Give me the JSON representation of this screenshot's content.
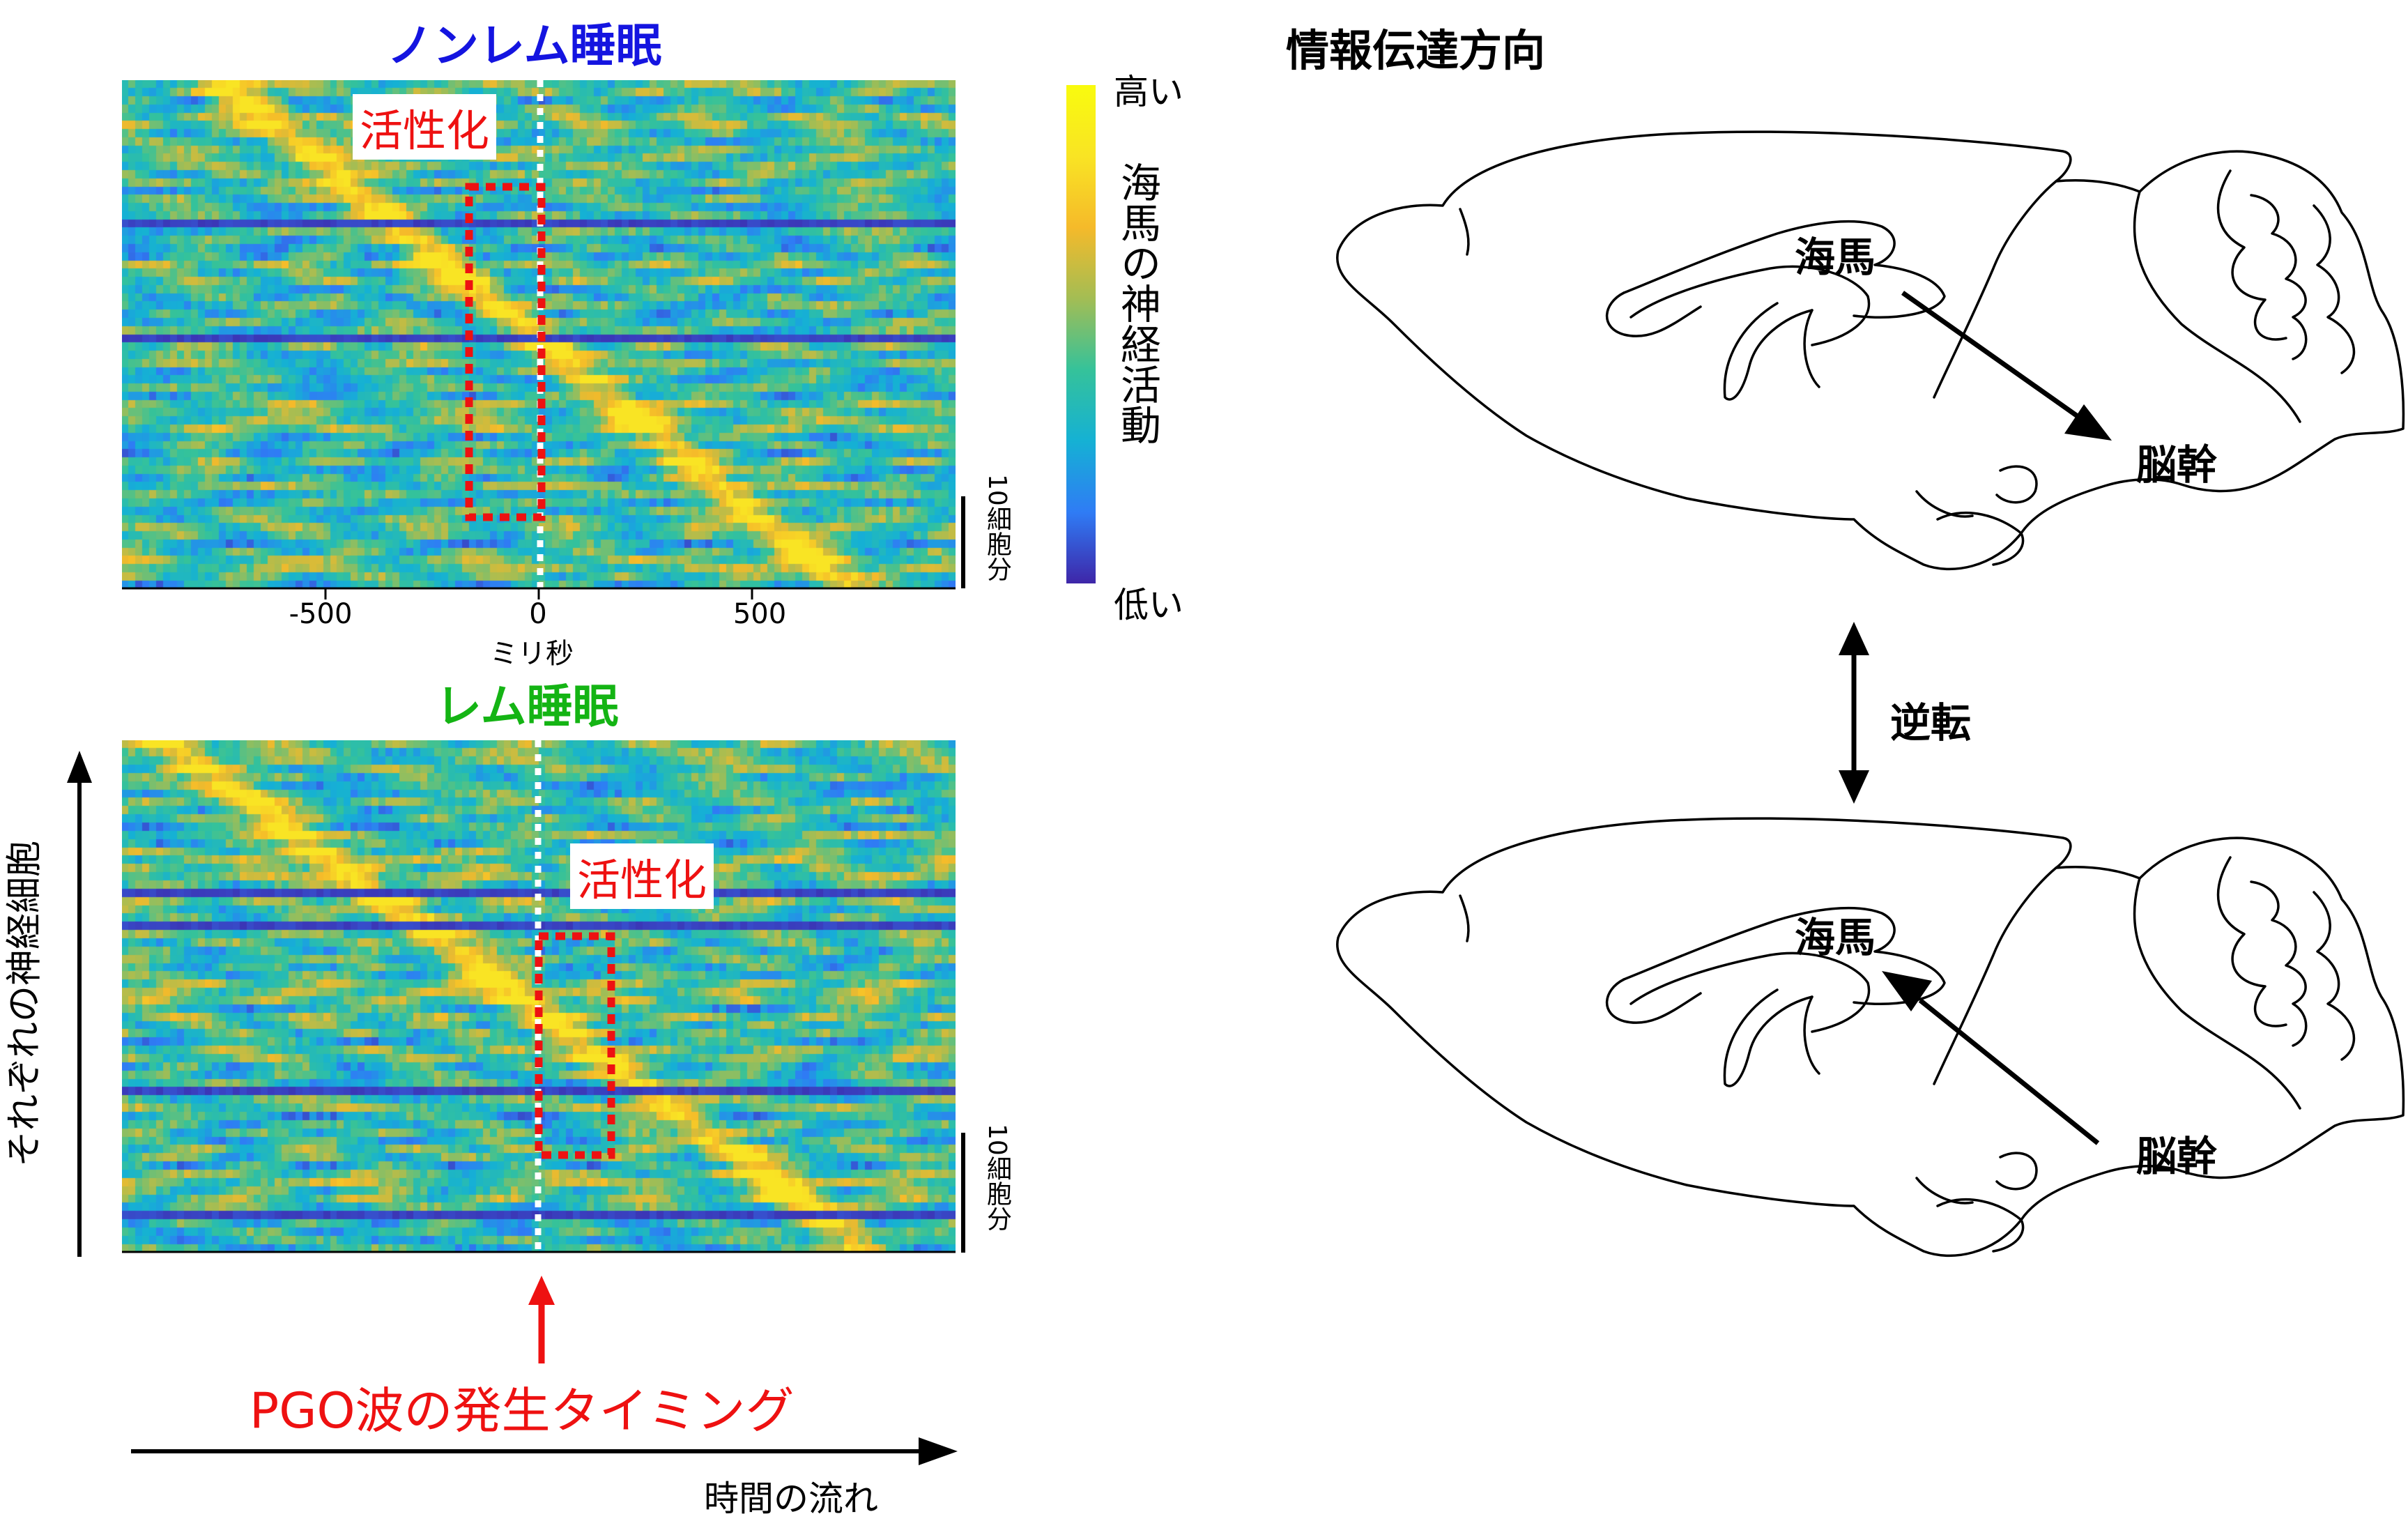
{
  "panels": [
    {
      "title": "ノンレム睡眠",
      "activation_label": "活性化",
      "scale_label": "10細胞分",
      "x_ticks": [
        "-500",
        "0",
        "500"
      ],
      "x_unit": "ミリ秒"
    },
    {
      "title": "レム睡眠",
      "activation_label": "活性化",
      "scale_label": "10細胞分"
    }
  ],
  "colorbar": {
    "high": "高い",
    "low": "低い",
    "label": "海馬の神経活動"
  },
  "y_axis_label": "それぞれの神経細胞",
  "pgo_label": "PGO波の発生タイミング",
  "time_label": "時間の流れ",
  "right": {
    "title": "情報伝達方向",
    "top_brain": {
      "hippocampus": "海馬",
      "brainstem": "脳幹"
    },
    "reverse_label": "逆転",
    "bottom_brain": {
      "hippocampus": "海馬",
      "brainstem": "脳幹"
    }
  },
  "colors": {
    "nonrem_title": "#1414e0",
    "rem_title": "#14b414",
    "highlight": "#ee1111",
    "colormap": [
      "#3e26a8",
      "#2f7cf5",
      "#15b1d4",
      "#35c29a",
      "#a3bd54",
      "#f5ba2a",
      "#f9e424"
    ]
  }
}
